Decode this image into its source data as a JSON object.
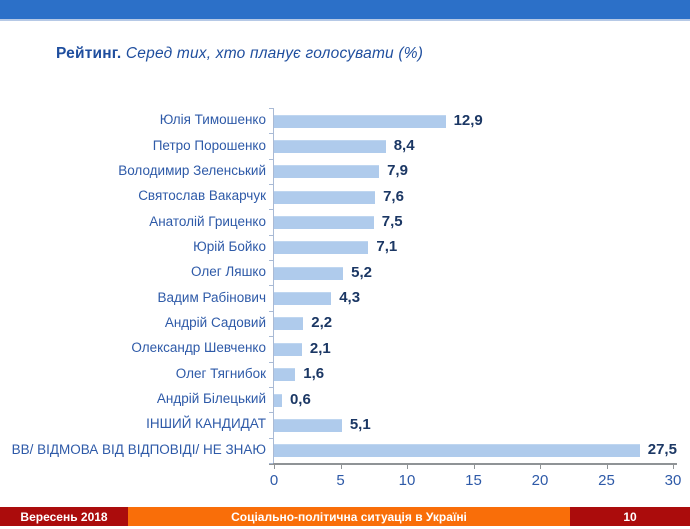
{
  "slide": {
    "title_bold": "Рейтинг.",
    "title_italic": " Серед тих, хто планує голосувати (%)"
  },
  "chart_data": {
    "type": "bar",
    "orientation": "horizontal",
    "title": "Рейтинг. Серед тих, хто планує голосувати (%)",
    "categories": [
      "Юлія Тимошенко",
      "Петро Порошенко",
      "Володимир Зеленський",
      "Святослав Вакарчук",
      "Анатолій Гриценко",
      "Юрій Бойко",
      "Олег Ляшко",
      "Вадим Рабінович",
      "Андрій Садовий",
      "Олександр Шевченко",
      "Олег Тягнибок",
      "Андрій Білецький",
      "ІНШИЙ КАНДИДАТ",
      "ВВ/ ВІДМОВА ВІД ВІДПОВІДІ/ НЕ ЗНАЮ"
    ],
    "values": [
      12.9,
      8.4,
      7.9,
      7.6,
      7.5,
      7.1,
      5.2,
      4.3,
      2.2,
      2.1,
      1.6,
      0.6,
      5.1,
      27.5
    ],
    "value_labels": [
      "12,9",
      "8,4",
      "7,9",
      "7,6",
      "7,5",
      "7,1",
      "5,2",
      "4,3",
      "2,2",
      "2,1",
      "1,6",
      "0,6",
      "5,1",
      "27,5"
    ],
    "xlabel": "",
    "ylabel": "",
    "xlim": [
      0,
      30
    ],
    "x_ticks": [
      0,
      5,
      10,
      15,
      20,
      25,
      30
    ],
    "x_tick_labels": [
      "0",
      "5",
      "10",
      "15",
      "20",
      "25",
      "30"
    ],
    "grid": false,
    "legend": false,
    "bar_color": "#AFCBEC",
    "value_label_color": "#1B3764",
    "category_label_color": "#2E5AA8"
  },
  "footer": {
    "left_text": "Вересень 2018",
    "center_text": "Соціально-політична ситуація в Україні",
    "page_number": "10"
  },
  "colors": {
    "top_bar": "#2C70C8",
    "top_bar_underline": "#B6C9E6",
    "title_text": "#1F4E9E",
    "footer_red": "#AB0C0C",
    "footer_orange": "#F96E09"
  }
}
